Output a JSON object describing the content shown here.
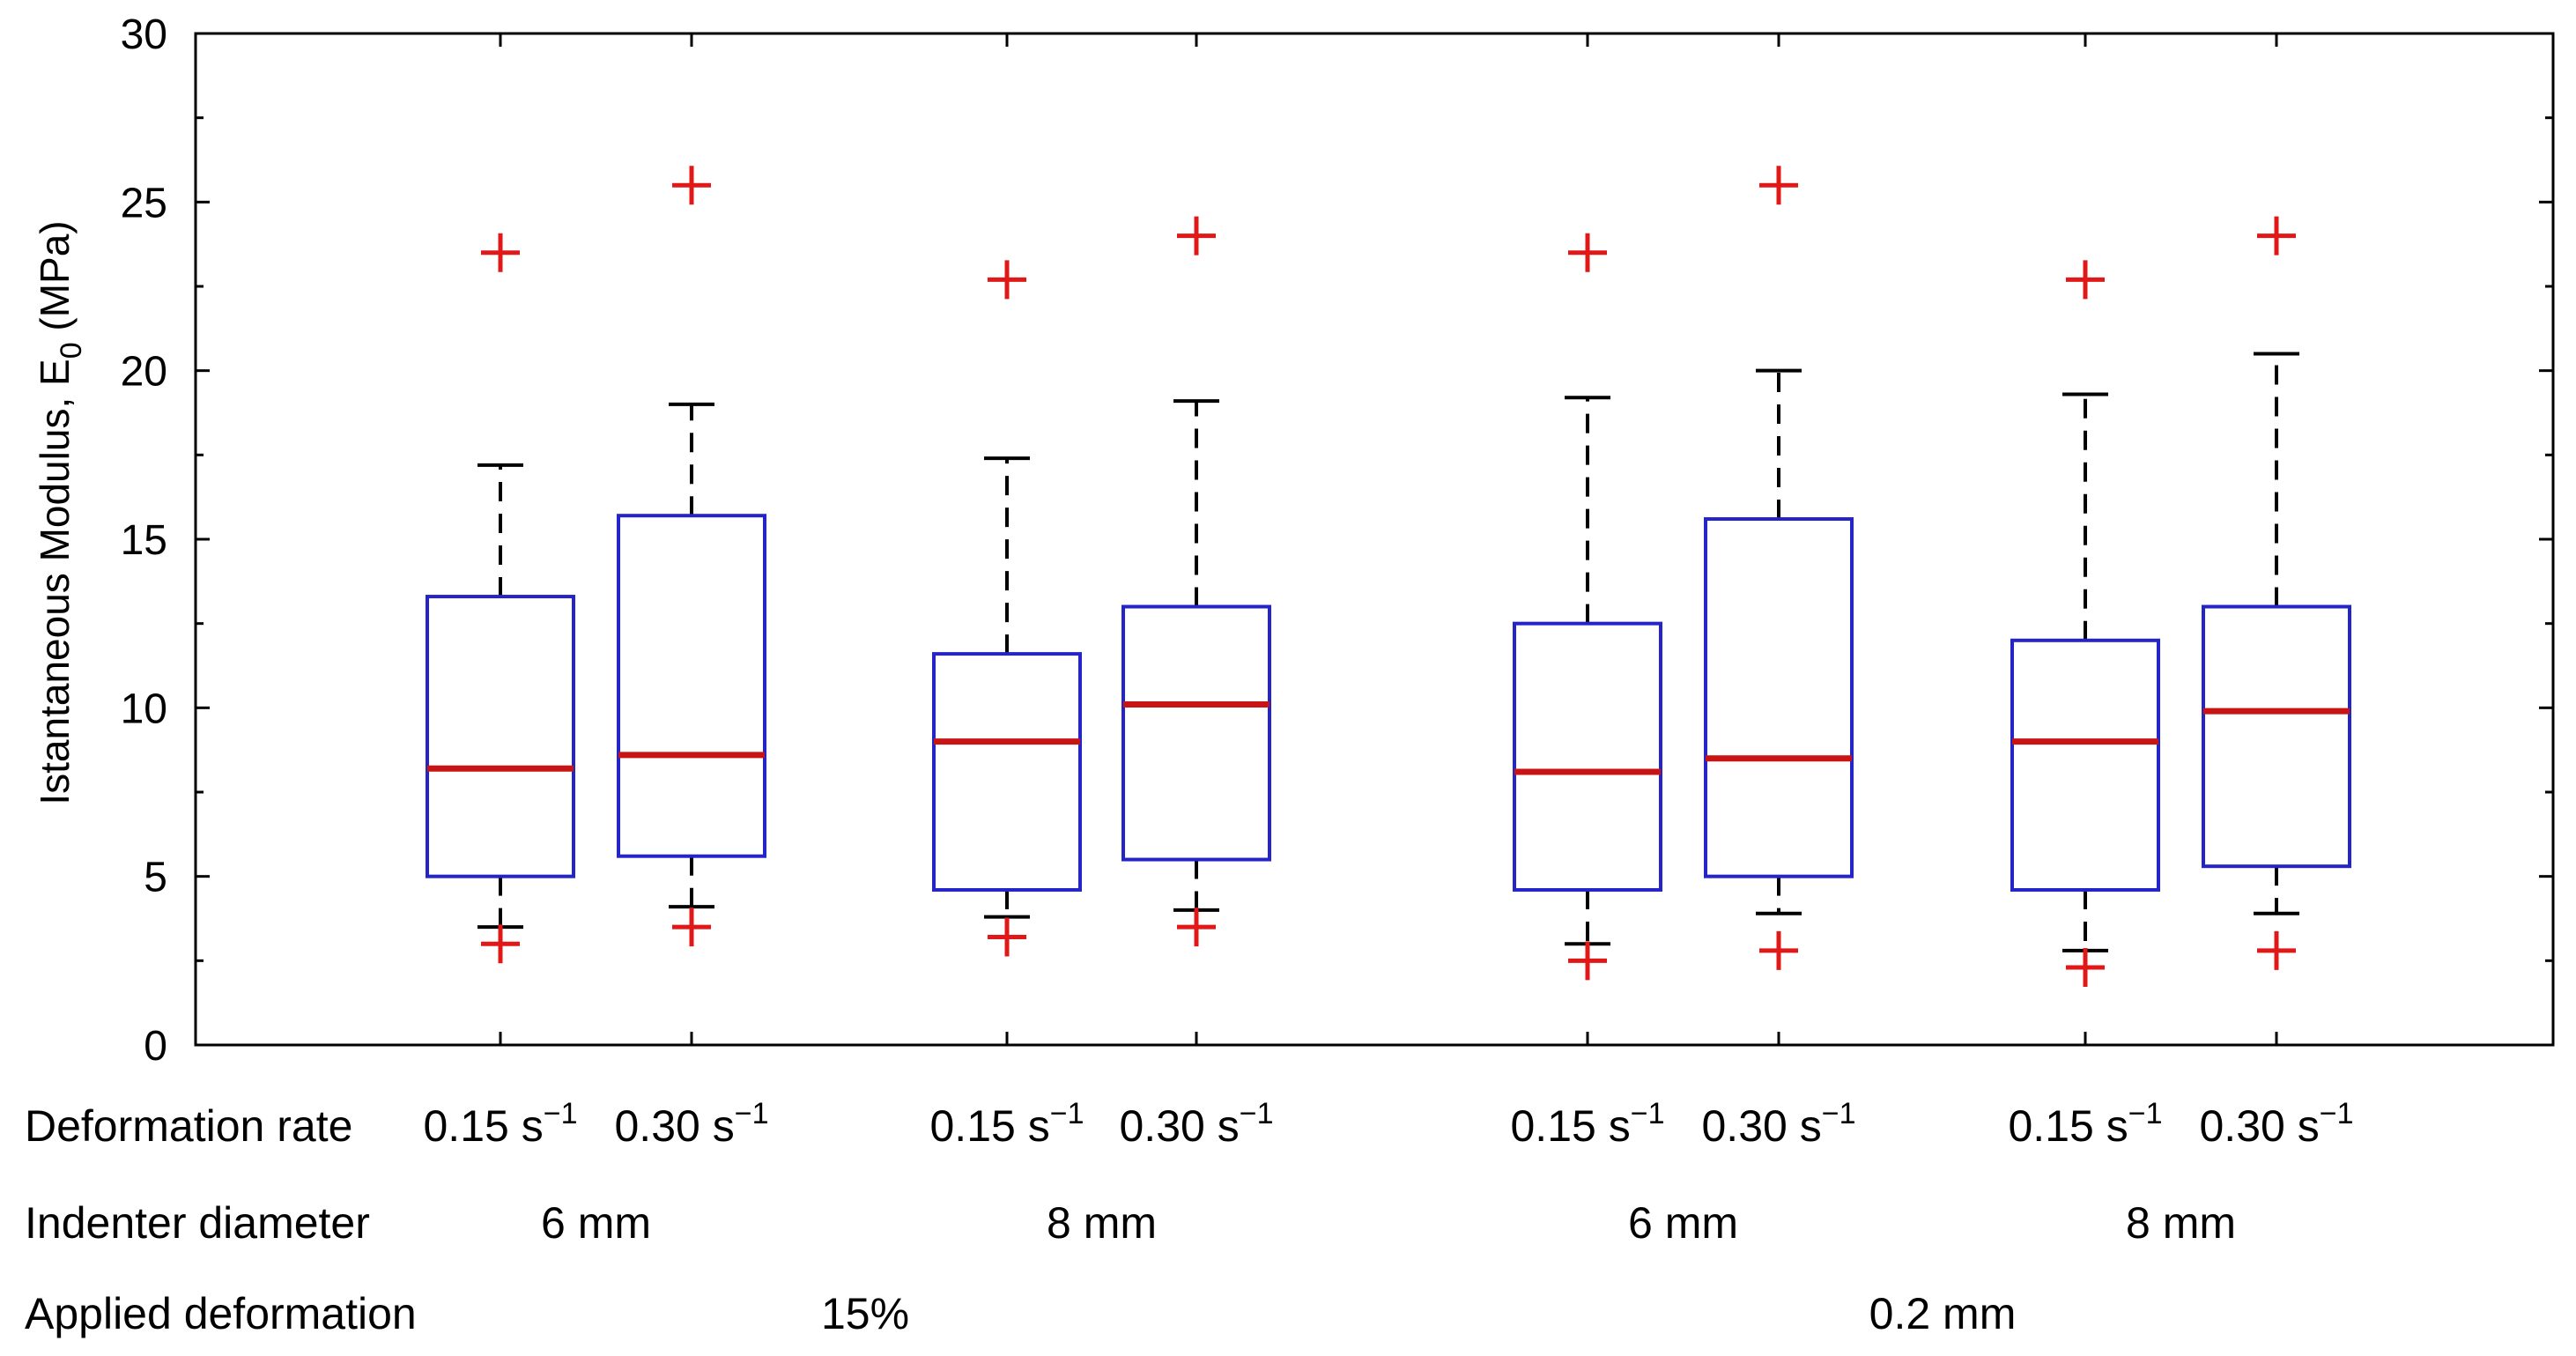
{
  "chart_data": {
    "type": "boxplot",
    "title": "",
    "ylabel": "Istantaneous Modulus, E",
    "ylabel_subscript": "0",
    "ylabel_unit": "(MPa)",
    "ylim": [
      0,
      30
    ],
    "yticks": [
      0,
      5,
      10,
      15,
      20,
      25,
      30
    ],
    "grid": false,
    "row_labels": {
      "rate": "Deformation rate",
      "diameter": "Indenter diameter",
      "deformation": "Applied deformation"
    },
    "rate_unit": "s",
    "rate_exponent": "−1",
    "groups": [
      {
        "diameter": "6 mm",
        "deformation": "15%"
      },
      {
        "diameter": "8 mm",
        "deformation": "15%"
      },
      {
        "diameter": "6 mm",
        "deformation": "0.2 mm"
      },
      {
        "diameter": "8 mm",
        "deformation": "0.2 mm"
      }
    ],
    "deformation_labels": [
      "15%",
      "0.2 mm"
    ],
    "boxes": [
      {
        "rate": "0.15",
        "group": 0,
        "q1": 5.0,
        "median": 8.2,
        "q3": 13.3,
        "whisker_low": 3.5,
        "whisker_high": 17.2,
        "outliers": [
          23.5,
          3.0
        ]
      },
      {
        "rate": "0.30",
        "group": 0,
        "q1": 5.6,
        "median": 8.6,
        "q3": 15.7,
        "whisker_low": 4.1,
        "whisker_high": 19.0,
        "outliers": [
          25.5,
          3.5
        ]
      },
      {
        "rate": "0.15",
        "group": 1,
        "q1": 4.6,
        "median": 9.0,
        "q3": 11.6,
        "whisker_low": 3.8,
        "whisker_high": 17.4,
        "outliers": [
          22.7,
          3.2
        ]
      },
      {
        "rate": "0.30",
        "group": 1,
        "q1": 5.5,
        "median": 10.1,
        "q3": 13.0,
        "whisker_low": 4.0,
        "whisker_high": 19.1,
        "outliers": [
          24.0,
          3.5
        ]
      },
      {
        "rate": "0.15",
        "group": 2,
        "q1": 4.6,
        "median": 8.1,
        "q3": 12.5,
        "whisker_low": 3.0,
        "whisker_high": 19.2,
        "outliers": [
          23.5,
          2.5
        ]
      },
      {
        "rate": "0.30",
        "group": 2,
        "q1": 5.0,
        "median": 8.5,
        "q3": 15.6,
        "whisker_low": 3.9,
        "whisker_high": 20.0,
        "outliers": [
          25.5,
          2.8
        ]
      },
      {
        "rate": "0.15",
        "group": 3,
        "q1": 4.6,
        "median": 9.0,
        "q3": 12.0,
        "whisker_low": 2.8,
        "whisker_high": 19.3,
        "outliers": [
          22.7,
          2.3
        ]
      },
      {
        "rate": "0.30",
        "group": 3,
        "q1": 5.3,
        "median": 9.9,
        "q3": 13.0,
        "whisker_low": 3.9,
        "whisker_high": 20.5,
        "outliers": [
          24.0,
          2.8
        ]
      }
    ],
    "colors": {
      "box": "#2424c8",
      "median": "#c81414",
      "whisker": "#000000",
      "outlier": "#e01818",
      "axis": "#000000"
    }
  }
}
